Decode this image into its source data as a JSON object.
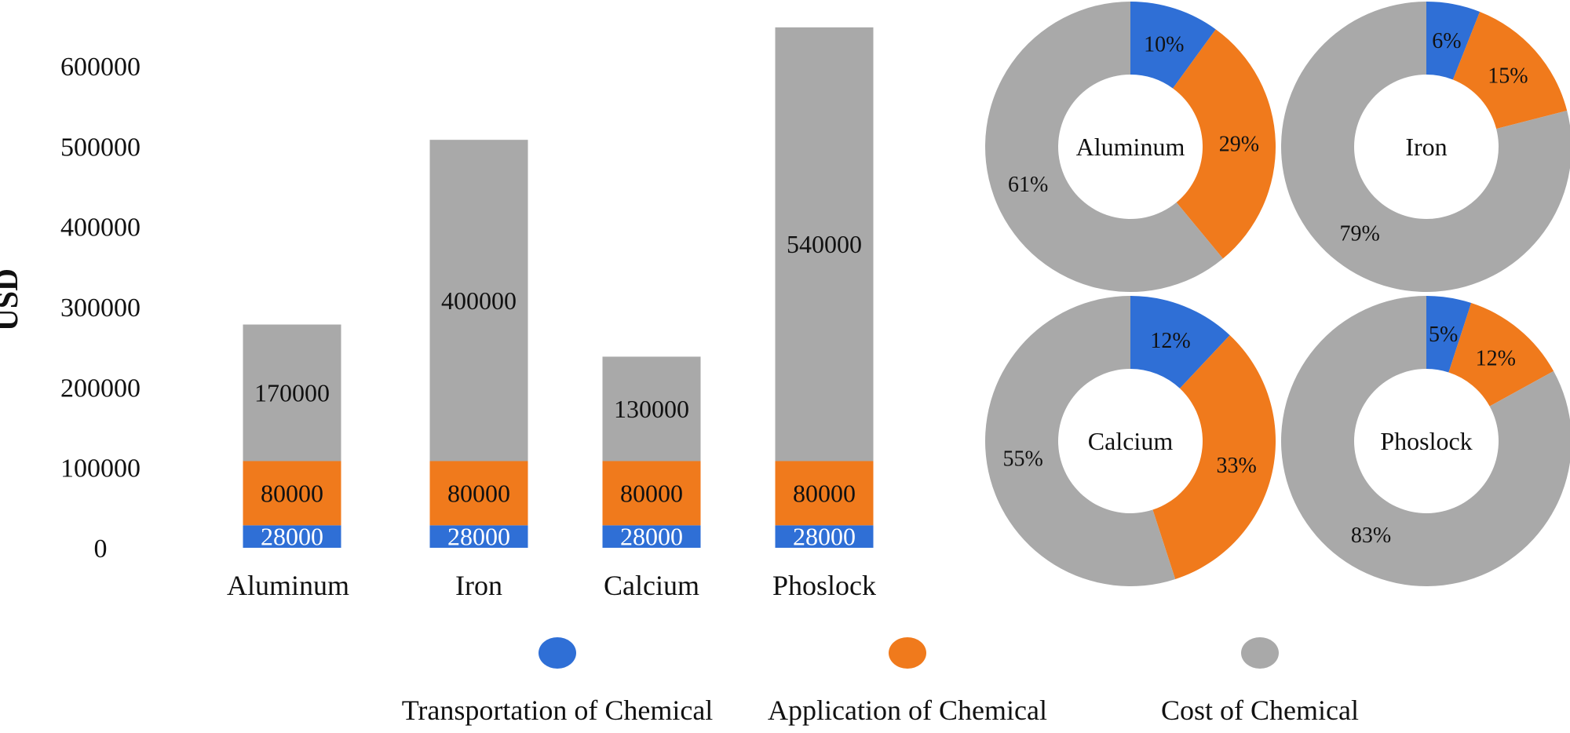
{
  "chart_data": [
    {
      "type": "bar",
      "stacked": true,
      "ylabel": "USD",
      "xlabel": "",
      "ylim": [
        0,
        600000
      ],
      "yticks": [
        0,
        100000,
        200000,
        300000,
        400000,
        500000,
        600000
      ],
      "categories": [
        "Aluminum",
        "Iron",
        "Calcium",
        "Phoslock"
      ],
      "series": [
        {
          "name": "Transportation of Chemical",
          "color": "#2f6fd6",
          "values": [
            28000,
            28000,
            28000,
            28000
          ],
          "labels": [
            "28000",
            "28000",
            "28000",
            "28000"
          ]
        },
        {
          "name": "Application of Chemical",
          "color": "#f07a1c",
          "values": [
            80000,
            80000,
            80000,
            80000
          ],
          "labels": [
            "80000",
            "80000",
            "80000",
            "80000"
          ]
        },
        {
          "name": "Cost of Chemical",
          "color": "#a9a9a9",
          "values": [
            170000,
            400000,
            130000,
            540000
          ],
          "labels": [
            "170000",
            "400000",
            "130000",
            "540000"
          ]
        }
      ],
      "grid": false
    },
    {
      "type": "pie",
      "donut": true,
      "center_label": "Aluminum",
      "slices": [
        {
          "series": "Transportation of Chemical",
          "value": 10,
          "label": "10%"
        },
        {
          "series": "Application of Chemical",
          "value": 29,
          "label": "29%"
        },
        {
          "series": "Cost of Chemical",
          "value": 61,
          "label": "61%"
        }
      ]
    },
    {
      "type": "pie",
      "donut": true,
      "center_label": "Iron",
      "slices": [
        {
          "series": "Transportation of Chemical",
          "value": 6,
          "label": "6%"
        },
        {
          "series": "Application of Chemical",
          "value": 15,
          "label": "15%"
        },
        {
          "series": "Cost of Chemical",
          "value": 79,
          "label": "79%"
        }
      ]
    },
    {
      "type": "pie",
      "donut": true,
      "center_label": "Calcium",
      "slices": [
        {
          "series": "Transportation of Chemical",
          "value": 12,
          "label": "12%"
        },
        {
          "series": "Application of Chemical",
          "value": 33,
          "label": "33%"
        },
        {
          "series": "Cost of Chemical",
          "value": 55,
          "label": "55%"
        }
      ]
    },
    {
      "type": "pie",
      "donut": true,
      "center_label": "Phoslock",
      "slices": [
        {
          "series": "Transportation of Chemical",
          "value": 5,
          "label": "5%"
        },
        {
          "series": "Application of Chemical",
          "value": 12,
          "label": "12%"
        },
        {
          "series": "Cost of Chemical",
          "value": 83,
          "label": "83%"
        }
      ]
    }
  ],
  "legend": {
    "placement": "bottom",
    "items": [
      {
        "label": "Transportation of Chemical",
        "color": "#2f6fd6"
      },
      {
        "label": "Application of Chemical",
        "color": "#f07a1c"
      },
      {
        "label": "Cost of Chemical",
        "color": "#a9a9a9"
      }
    ]
  }
}
